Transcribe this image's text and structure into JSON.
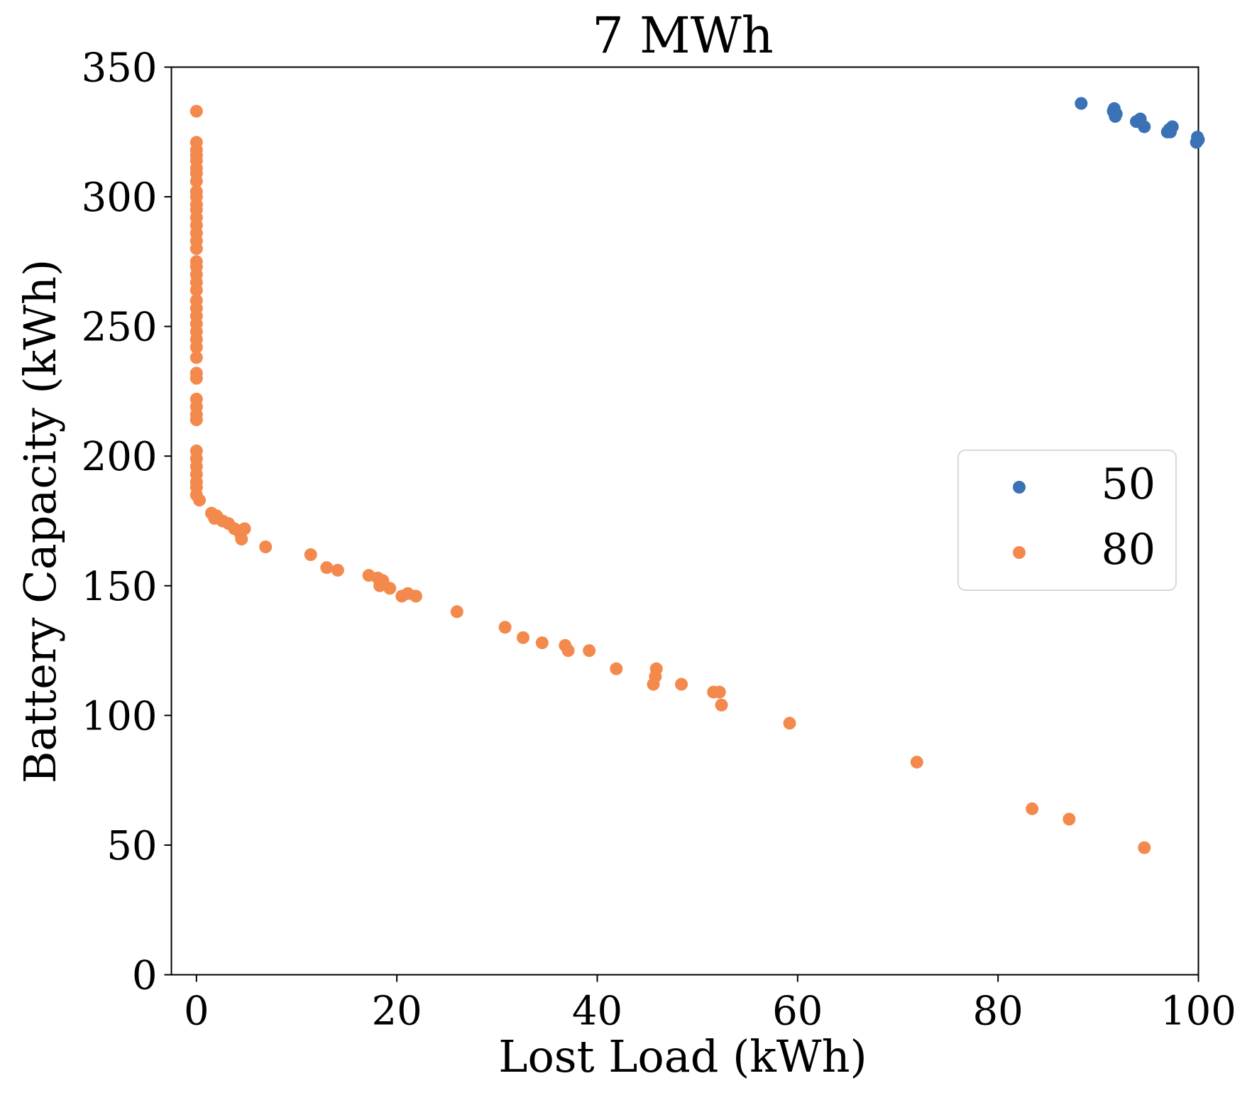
{
  "chart_data": {
    "type": "scatter",
    "title": "7 MWh",
    "xlabel": "Lost Load (kWh)",
    "ylabel": "Battery Capacity (kWh)",
    "xlim": [
      -2.5,
      100
    ],
    "ylim": [
      0,
      350
    ],
    "xticks": [
      0,
      20,
      40,
      60,
      80,
      100
    ],
    "yticks": [
      0,
      50,
      100,
      150,
      200,
      250,
      300,
      350
    ],
    "xtick_labels": [
      "0",
      "20",
      "40",
      "60",
      "80",
      "100"
    ],
    "ytick_labels": [
      "0",
      "50",
      "100",
      "150",
      "200",
      "250",
      "300",
      "350"
    ],
    "grid": false,
    "legend_position": "center-right",
    "series": [
      {
        "name": "50",
        "color": "#3a72b5",
        "points": [
          [
            88.3,
            336
          ],
          [
            91.5,
            333
          ],
          [
            91.6,
            334
          ],
          [
            91.8,
            332
          ],
          [
            91.7,
            331
          ],
          [
            93.8,
            329
          ],
          [
            94.2,
            330
          ],
          [
            94.6,
            327
          ],
          [
            96.9,
            325
          ],
          [
            97.1,
            326
          ],
          [
            97.4,
            327
          ],
          [
            97.2,
            325
          ],
          [
            99.9,
            323
          ],
          [
            99.8,
            321
          ],
          [
            100.0,
            322
          ]
        ]
      },
      {
        "name": "80",
        "color": "#f4894d",
        "points": [
          [
            0,
            333
          ],
          [
            0,
            321
          ],
          [
            0,
            318
          ],
          [
            0,
            316
          ],
          [
            0,
            314
          ],
          [
            0,
            311
          ],
          [
            0,
            309
          ],
          [
            0,
            306
          ],
          [
            0,
            302
          ],
          [
            0,
            300
          ],
          [
            0,
            297
          ],
          [
            0,
            295
          ],
          [
            0,
            292
          ],
          [
            0,
            289
          ],
          [
            0,
            286
          ],
          [
            0,
            283
          ],
          [
            0,
            280
          ],
          [
            0,
            275
          ],
          [
            0,
            273
          ],
          [
            0,
            270
          ],
          [
            0,
            267
          ],
          [
            0,
            264
          ],
          [
            0,
            260
          ],
          [
            0,
            257
          ],
          [
            0,
            254
          ],
          [
            0,
            251
          ],
          [
            0,
            248
          ],
          [
            0,
            245
          ],
          [
            0,
            242
          ],
          [
            0,
            238
          ],
          [
            0,
            232
          ],
          [
            0,
            230
          ],
          [
            0,
            222
          ],
          [
            0,
            219
          ],
          [
            0,
            216
          ],
          [
            0,
            214
          ],
          [
            0,
            202
          ],
          [
            0,
            199
          ],
          [
            0,
            196
          ],
          [
            0,
            193
          ],
          [
            0,
            190
          ],
          [
            0,
            188
          ],
          [
            0,
            185
          ],
          [
            0.3,
            183
          ],
          [
            1.5,
            178
          ],
          [
            1.8,
            176
          ],
          [
            2.0,
            177
          ],
          [
            2.6,
            175
          ],
          [
            3.2,
            174
          ],
          [
            3.8,
            172
          ],
          [
            4.4,
            170
          ],
          [
            4.8,
            172
          ],
          [
            4.5,
            168
          ],
          [
            6.9,
            165
          ],
          [
            11.4,
            162
          ],
          [
            13.0,
            157
          ],
          [
            14.1,
            156
          ],
          [
            17.2,
            154
          ],
          [
            18.1,
            153
          ],
          [
            18.3,
            150
          ],
          [
            18.6,
            152
          ],
          [
            19.3,
            149
          ],
          [
            20.5,
            146
          ],
          [
            21.1,
            147
          ],
          [
            21.9,
            146
          ],
          [
            26.0,
            140
          ],
          [
            30.8,
            134
          ],
          [
            32.6,
            130
          ],
          [
            34.5,
            128
          ],
          [
            36.8,
            127
          ],
          [
            37.1,
            125
          ],
          [
            39.2,
            125
          ],
          [
            41.9,
            118
          ],
          [
            45.6,
            112
          ],
          [
            45.8,
            115
          ],
          [
            45.9,
            118
          ],
          [
            48.4,
            112
          ],
          [
            51.6,
            109
          ],
          [
            52.2,
            109
          ],
          [
            52.4,
            104
          ],
          [
            59.2,
            97
          ],
          [
            71.9,
            82
          ],
          [
            83.4,
            64
          ],
          [
            87.1,
            60
          ],
          [
            94.6,
            49
          ]
        ]
      }
    ]
  }
}
